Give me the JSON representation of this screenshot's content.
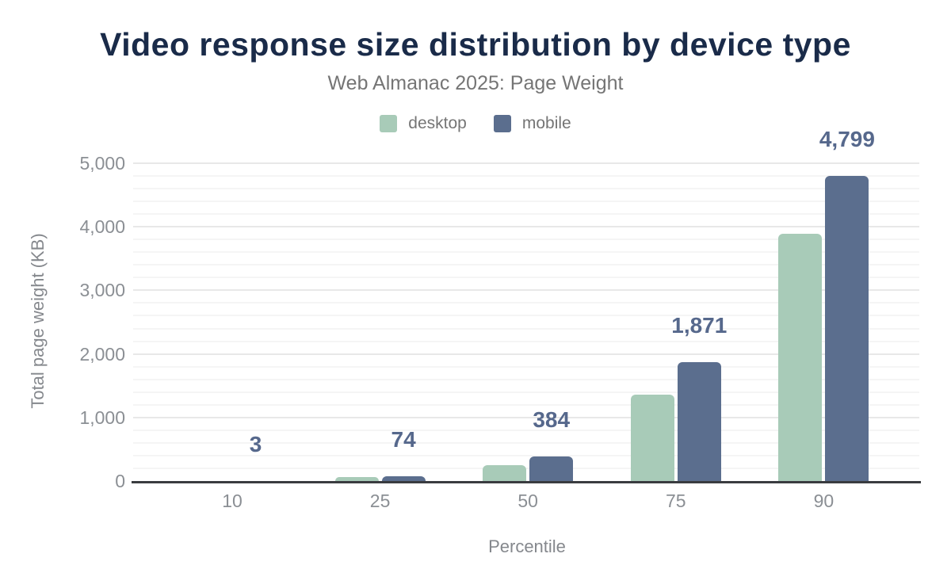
{
  "title": "Video response size distribution by device type",
  "subtitle": "Web Almanac 2025: Page Weight",
  "legend": [
    {
      "label": "desktop",
      "color": "#a8cbb8"
    },
    {
      "label": "mobile",
      "color": "#5b6e8e"
    }
  ],
  "colors": {
    "title": "#1a2b49",
    "desktop_bar": "#a8cbb8",
    "mobile_bar": "#5b6e8e",
    "data_label": "#56688c",
    "axis_line": "#3a3c40",
    "tick_text": "#8b8f94",
    "muted_text": "#757575"
  },
  "chart_data": {
    "type": "bar",
    "title": "Video response size distribution by device type",
    "subtitle": "Web Almanac 2025: Page Weight",
    "xlabel": "Percentile",
    "ylabel": "Total page weight (KB)",
    "categories": [
      "10",
      "25",
      "50",
      "75",
      "90"
    ],
    "series": [
      {
        "name": "desktop",
        "color": "#a8cbb8",
        "values": [
          2,
          57,
          249,
          1360,
          3885
        ]
      },
      {
        "name": "mobile",
        "color": "#5b6e8e",
        "values": [
          3,
          74,
          384,
          1871,
          4799
        ]
      }
    ],
    "data_labels": {
      "series": "mobile",
      "values": [
        "3",
        "74",
        "384",
        "1,871",
        "4,799"
      ]
    },
    "ylim": [
      0,
      5000
    ],
    "yticks": [
      0,
      1000,
      2000,
      3000,
      4000,
      5000
    ],
    "ytick_labels": [
      "0",
      "1,000",
      "2,000",
      "3,000",
      "4,000",
      "5,000"
    ],
    "minor_grid_step": 200,
    "grid": true,
    "legend_position": "top"
  }
}
